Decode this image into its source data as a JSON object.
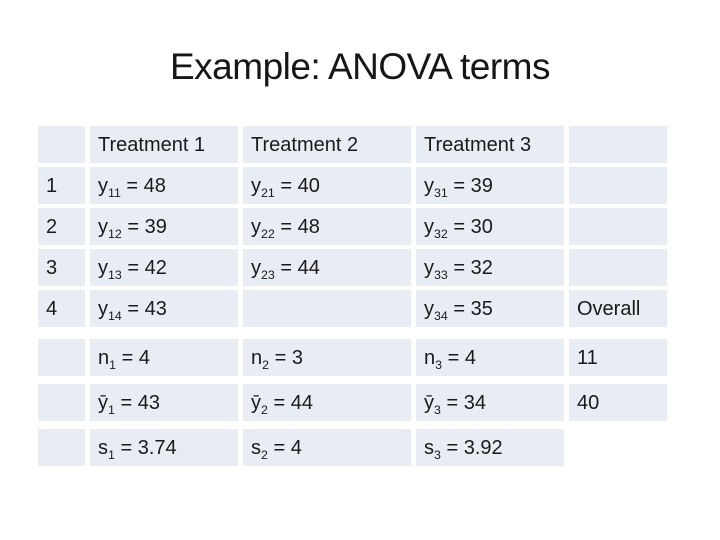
{
  "slide": {
    "title": "Example: ANOVA terms",
    "background": "#ffffff"
  },
  "theme": {
    "cell_bg": "#e8ecf3",
    "text_color": "#1a1a1a"
  },
  "table": {
    "rows": [
      {
        "cells": [
          {
            "b": "",
            "s": "",
            "t": ""
          },
          {
            "b": "Treatment 1",
            "s": "",
            "t": ""
          },
          {
            "b": "Treatment 2",
            "s": "",
            "t": ""
          },
          {
            "b": "Treatment 3",
            "s": "",
            "t": ""
          },
          {
            "b": "",
            "s": "",
            "t": ""
          }
        ]
      },
      {
        "cells": [
          {
            "b": "1",
            "s": "",
            "t": ""
          },
          {
            "b": "y",
            "s": "11",
            "t": " = 48"
          },
          {
            "b": "y",
            "s": "21",
            "t": " = 40"
          },
          {
            "b": "y",
            "s": "31",
            "t": " = 39"
          },
          {
            "b": "",
            "s": "",
            "t": ""
          }
        ]
      },
      {
        "cells": [
          {
            "b": "2",
            "s": "",
            "t": ""
          },
          {
            "b": "y",
            "s": "12",
            "t": " = 39"
          },
          {
            "b": "y",
            "s": "22",
            "t": " = 48"
          },
          {
            "b": "y",
            "s": "32",
            "t": " = 30"
          },
          {
            "b": "",
            "s": "",
            "t": ""
          }
        ]
      },
      {
        "cells": [
          {
            "b": "3",
            "s": "",
            "t": ""
          },
          {
            "b": "y",
            "s": "13",
            "t": " = 42"
          },
          {
            "b": "y",
            "s": "23",
            "t": " = 44"
          },
          {
            "b": "y",
            "s": "33",
            "t": " = 32"
          },
          {
            "b": "",
            "s": "",
            "t": ""
          }
        ]
      },
      {
        "cells": [
          {
            "b": "4",
            "s": "",
            "t": ""
          },
          {
            "b": "y",
            "s": "14",
            "t": " = 43"
          },
          {
            "b": "",
            "s": "",
            "t": ""
          },
          {
            "b": "y",
            "s": "34",
            "t": " = 35"
          },
          {
            "b": "Overall",
            "s": "",
            "t": ""
          }
        ]
      },
      {
        "cells": [
          {
            "b": "",
            "s": "",
            "t": ""
          },
          {
            "b": "n",
            "s": "1",
            "t": " = 4"
          },
          {
            "b": "n",
            "s": "2",
            "t": " = 3"
          },
          {
            "b": "n",
            "s": "3",
            "t": " = 4"
          },
          {
            "b": "11",
            "s": "",
            "t": ""
          }
        ]
      },
      {
        "cells": [
          {
            "b": "",
            "s": "",
            "t": ""
          },
          {
            "b": "ȳ",
            "s": "1",
            "t": " = 43"
          },
          {
            "b": "ȳ",
            "s": "2",
            "t": " = 44"
          },
          {
            "b": "ȳ",
            "s": "3",
            "t": " = 34"
          },
          {
            "b": "40",
            "s": "",
            "t": ""
          }
        ]
      },
      {
        "cells": [
          {
            "b": "",
            "s": "",
            "t": ""
          },
          {
            "b": "s",
            "s": "1",
            "t": " = 3.74"
          },
          {
            "b": "s",
            "s": "2",
            "t": " = 4"
          },
          {
            "b": "s",
            "s": "3",
            "t": " = 3.92"
          },
          {
            "b": "",
            "s": "",
            "t": ""
          }
        ]
      }
    ]
  }
}
